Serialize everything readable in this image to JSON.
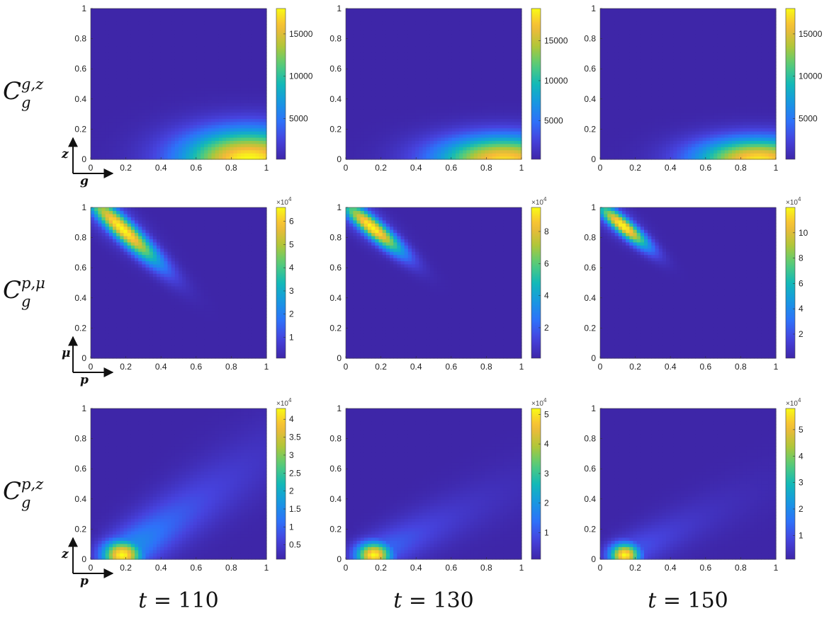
{
  "chart_data": {
    "type": "heatmap",
    "layout": {
      "rows": 3,
      "cols": 3
    },
    "columns": [
      {
        "label_var": "t",
        "label_value": "110"
      },
      {
        "label_var": "t",
        "label_value": "130"
      },
      {
        "label_var": "t",
        "label_value": "150"
      }
    ],
    "rows": [
      {
        "label_base": "C",
        "label_sub": "g",
        "label_sup": "g,z",
        "xarrow": "g",
        "yarrow": "z"
      },
      {
        "label_base": "C",
        "label_sub": "g",
        "label_sup": "p,μ",
        "xarrow": "p",
        "yarrow": "μ"
      },
      {
        "label_base": "C",
        "label_sub": "g",
        "label_sup": "p,z",
        "xarrow": "p",
        "yarrow": "z"
      }
    ],
    "xlim": [
      0,
      1
    ],
    "ylim": [
      0,
      1
    ],
    "xticks": [
      "0",
      "0.2",
      "0.4",
      "0.6",
      "0.8",
      "1"
    ],
    "yticks": [
      "0",
      "0.2",
      "0.4",
      "0.6",
      "0.8",
      "1"
    ],
    "colormap": "parula",
    "colors": {
      "low": "#3e26a8",
      "high": "#f9fb15"
    },
    "panels": [
      {
        "row": 0,
        "col": 0,
        "clim": [
          200,
          18000
        ],
        "multiplier": "",
        "cbticks": [
          {
            "v": 5000,
            "label": "5000"
          },
          {
            "v": 10000,
            "label": "10000"
          },
          {
            "v": 15000,
            "label": "15000"
          }
        ],
        "field": {
          "kind": "ellipse",
          "peak": [
            0.9,
            0.0
          ],
          "sx": 0.27,
          "sy": 0.1,
          "sy_up": 0.14,
          "rot": 0,
          "level": 1.0,
          "extent": [
            0,
            1,
            0,
            1
          ]
        }
      },
      {
        "row": 0,
        "col": 1,
        "clim": [
          200,
          19000
        ],
        "multiplier": "",
        "cbticks": [
          {
            "v": 5000,
            "label": "5000"
          },
          {
            "v": 10000,
            "label": "10000"
          },
          {
            "v": 15000,
            "label": "15000"
          }
        ],
        "field": {
          "kind": "ellipse",
          "peak": [
            0.9,
            0.0
          ],
          "sx": 0.27,
          "sy": 0.08,
          "sy_up": 0.11,
          "rot": 0,
          "level": 0.94,
          "extent": [
            0,
            1,
            0,
            1
          ]
        }
      },
      {
        "row": 0,
        "col": 2,
        "clim": [
          200,
          18000
        ],
        "multiplier": "",
        "cbticks": [
          {
            "v": 5000,
            "label": "5000"
          },
          {
            "v": 10000,
            "label": "10000"
          },
          {
            "v": 15000,
            "label": "15000"
          }
        ],
        "field": {
          "kind": "ellipse",
          "peak": [
            0.9,
            0.0
          ],
          "sx": 0.25,
          "sy": 0.07,
          "sy_up": 0.1,
          "rot": 0,
          "level": 0.96,
          "extent": [
            0,
            1,
            0,
            1
          ]
        }
      },
      {
        "row": 1,
        "col": 0,
        "clim": [
          1000,
          66000
        ],
        "multiplier": "×10^4",
        "cbticks": [
          {
            "v": 10000,
            "label": "1"
          },
          {
            "v": 20000,
            "label": "2"
          },
          {
            "v": 30000,
            "label": "3"
          },
          {
            "v": 40000,
            "label": "4"
          },
          {
            "v": 50000,
            "label": "5"
          },
          {
            "v": 60000,
            "label": "6"
          }
        ],
        "field": {
          "kind": "ellipse",
          "peak": [
            0.18,
            0.86
          ],
          "sx": 0.22,
          "sy": 0.045,
          "rot": -48,
          "offset": 0.12,
          "level": 1.0,
          "extent": [
            0,
            1,
            0,
            1
          ]
        }
      },
      {
        "row": 1,
        "col": 1,
        "clim": [
          1000,
          95000
        ],
        "multiplier": "×10^4",
        "cbticks": [
          {
            "v": 20000,
            "label": "2"
          },
          {
            "v": 40000,
            "label": "4"
          },
          {
            "v": 60000,
            "label": "6"
          },
          {
            "v": 80000,
            "label": "8"
          }
        ],
        "field": {
          "kind": "ellipse",
          "peak": [
            0.15,
            0.87
          ],
          "sx": 0.17,
          "sy": 0.04,
          "rot": -45,
          "offset": 0.09,
          "level": 1.0,
          "extent": [
            0,
            1,
            0,
            1
          ]
        }
      },
      {
        "row": 1,
        "col": 2,
        "clim": [
          1000,
          120000
        ],
        "multiplier": "×10^4",
        "cbticks": [
          {
            "v": 20000,
            "label": "2"
          },
          {
            "v": 40000,
            "label": "4"
          },
          {
            "v": 60000,
            "label": "6"
          },
          {
            "v": 80000,
            "label": "8"
          },
          {
            "v": 100000,
            "label": "10"
          }
        ],
        "field": {
          "kind": "ellipse",
          "peak": [
            0.13,
            0.88
          ],
          "sx": 0.14,
          "sy": 0.035,
          "rot": -45,
          "offset": 0.07,
          "level": 1.0,
          "extent": [
            0,
            1,
            0,
            1
          ]
        }
      },
      {
        "row": 2,
        "col": 0,
        "clim": [
          1000,
          43000
        ],
        "multiplier": "×10^4",
        "cbticks": [
          {
            "v": 5000,
            "label": "0.5"
          },
          {
            "v": 10000,
            "label": "1"
          },
          {
            "v": 15000,
            "label": "1.5"
          },
          {
            "v": 20000,
            "label": "2"
          },
          {
            "v": 25000,
            "label": "2.5"
          },
          {
            "v": 30000,
            "label": "3"
          },
          {
            "v": 35000,
            "label": "3.5"
          },
          {
            "v": 40000,
            "label": "4"
          }
        ],
        "field": {
          "kind": "ellipse",
          "peak": [
            0.18,
            0.03
          ],
          "sx": 0.08,
          "sy": 0.07,
          "rot": 0,
          "tail": {
            "dir": 40,
            "len": 0.55,
            "w": 0.09,
            "level": 0.42
          },
          "level": 1.0,
          "extent": [
            0,
            1,
            0,
            1
          ]
        }
      },
      {
        "row": 2,
        "col": 1,
        "clim": [
          1000,
          52000
        ],
        "multiplier": "×10^4",
        "cbticks": [
          {
            "v": 10000,
            "label": "1"
          },
          {
            "v": 20000,
            "label": "2"
          },
          {
            "v": 30000,
            "label": "3"
          },
          {
            "v": 40000,
            "label": "4"
          },
          {
            "v": 50000,
            "label": "5"
          }
        ],
        "field": {
          "kind": "ellipse",
          "peak": [
            0.16,
            0.03
          ],
          "sx": 0.07,
          "sy": 0.06,
          "rot": 0,
          "tail": {
            "dir": 30,
            "len": 0.45,
            "w": 0.08,
            "level": 0.28
          },
          "level": 1.0,
          "extent": [
            0,
            1,
            0,
            1
          ]
        }
      },
      {
        "row": 2,
        "col": 2,
        "clim": [
          1000,
          58000
        ],
        "multiplier": "×10^4",
        "cbticks": [
          {
            "v": 10000,
            "label": "1"
          },
          {
            "v": 20000,
            "label": "2"
          },
          {
            "v": 30000,
            "label": "3"
          },
          {
            "v": 40000,
            "label": "4"
          },
          {
            "v": 50000,
            "label": "5"
          }
        ],
        "field": {
          "kind": "ellipse",
          "peak": [
            0.14,
            0.03
          ],
          "sx": 0.06,
          "sy": 0.055,
          "rot": 0,
          "tail": {
            "dir": 30,
            "len": 0.4,
            "w": 0.075,
            "level": 0.22
          },
          "level": 1.0,
          "extent": [
            0,
            1,
            0,
            1
          ]
        }
      }
    ]
  }
}
